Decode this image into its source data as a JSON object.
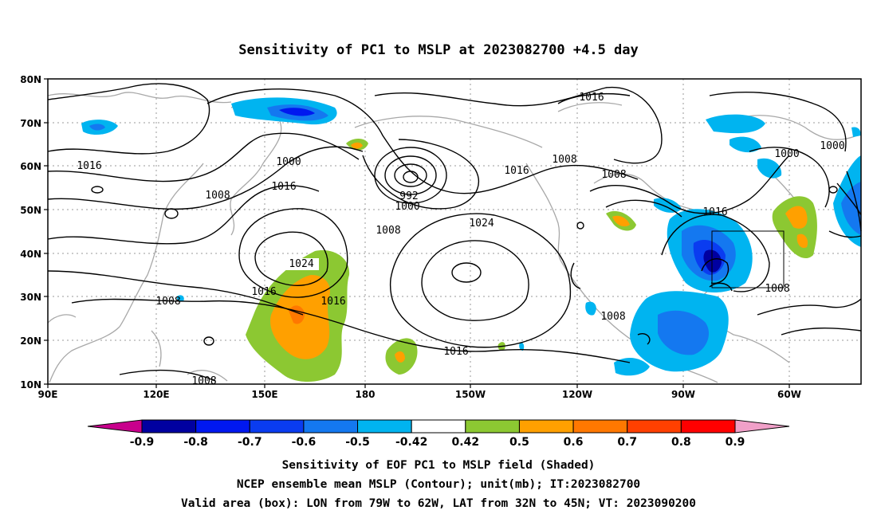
{
  "title": "Sensitivity of PC1 to MSLP at 2023082700 +4.5 day",
  "lat_labels": [
    "80N",
    "70N",
    "60N",
    "50N",
    "40N",
    "30N",
    "20N",
    "10N"
  ],
  "lon_labels": [
    "90E",
    "120E",
    "150E",
    "180",
    "150W",
    "120W",
    "90W",
    "60W"
  ],
  "contour_labels": [
    "1016",
    "1016",
    "1008",
    "1000",
    "1016",
    "992",
    "1000",
    "1008",
    "1016",
    "1008",
    "1000",
    "1000",
    "1016",
    "1024",
    "1024",
    "1016",
    "1016",
    "1008",
    "1008",
    "1016",
    "1008",
    "1008"
  ],
  "colorbar": {
    "labels": [
      "-0.9",
      "-0.8",
      "-0.7",
      "-0.6",
      "-0.5",
      "-0.42",
      "0.42",
      "0.5",
      "0.6",
      "0.7",
      "0.8",
      "0.9"
    ],
    "colors": [
      "#0000a0",
      "#0018f0",
      "#0a3cf0",
      "#1478f0",
      "#00b4f0",
      "#ffffff",
      "#8cc832",
      "#ffa000",
      "#ff7800",
      "#ff4000",
      "#ff0000"
    ],
    "under_color": "#c8008c",
    "over_color": "#f0a0c8"
  },
  "caption": {
    "line1": "Sensitivity of EOF PC1 to MSLP field (Shaded)",
    "line2": "NCEP ensemble mean MSLP (Contour); unit(mb); IT:2023082700",
    "line3": "Valid area (box): LON from 79W to 62W, LAT from 32N to 45N; VT: 2023090200"
  }
}
